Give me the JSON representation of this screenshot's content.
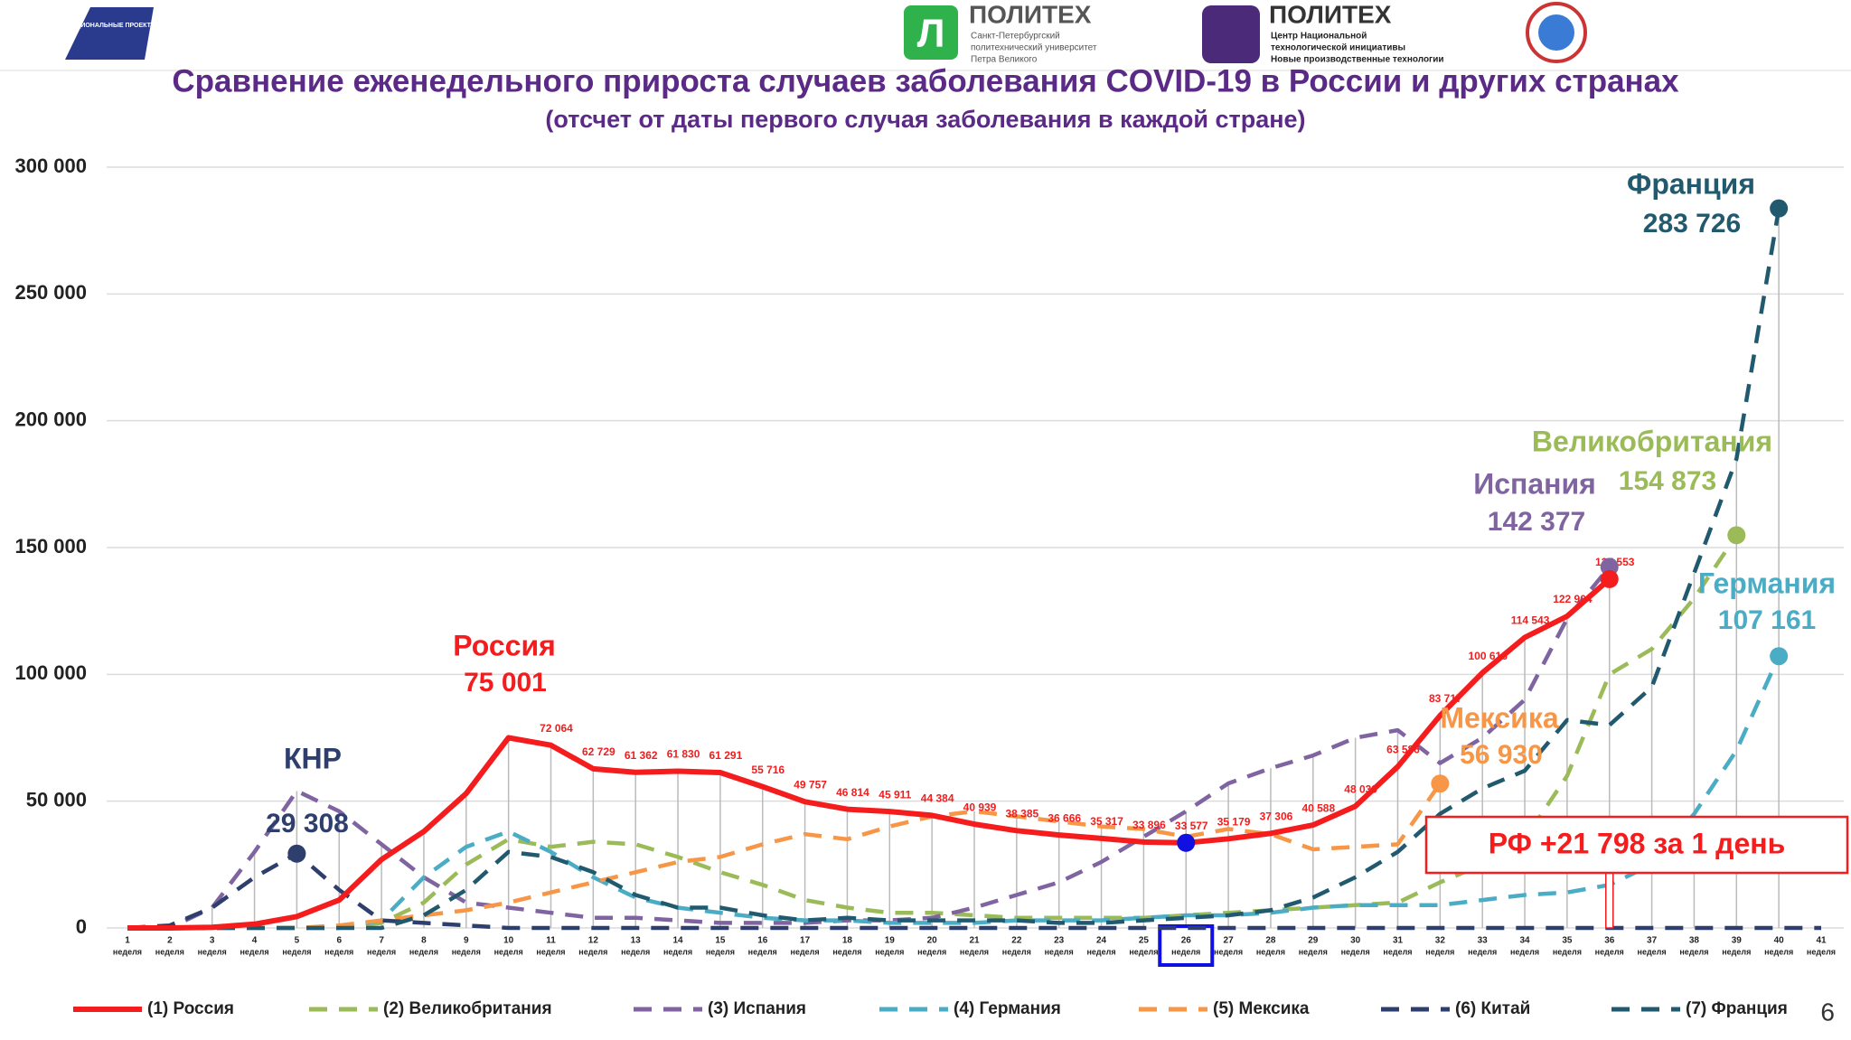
{
  "header": {
    "national_projects": "НАЦИОНАЛЬНЫЕ ПРОЕКТЫ РОССИИ",
    "logo1_title": "ПОЛИТЕХ",
    "logo1_text": [
      "Санкт-Петербургский",
      "политехнический университет",
      "Петра Великого"
    ],
    "logo2_title": "ПОЛИТЕХ",
    "logo2_text": [
      "Центр Национальной",
      "технологической инициативы",
      "Новые производственные технологии"
    ]
  },
  "page_number": "6",
  "chart_data": {
    "type": "line",
    "title": "Сравнение еженедельного прироста случаев заболевания COVID-19 в России и других странах",
    "subtitle": "(отсчет от даты первого случая заболевания в каждой стране)",
    "categories": [
      "1",
      "2",
      "3",
      "4",
      "5",
      "6",
      "7",
      "8",
      "9",
      "10",
      "11",
      "12",
      "13",
      "14",
      "15",
      "16",
      "17",
      "18",
      "19",
      "20",
      "21",
      "22",
      "23",
      "24",
      "25",
      "26",
      "27",
      "28",
      "29",
      "30",
      "31",
      "32",
      "33",
      "34",
      "35",
      "36",
      "37",
      "38",
      "39",
      "40",
      "41"
    ],
    "category_unit": "неделя",
    "ylim": [
      0,
      300000
    ],
    "yticks": [
      0,
      {
        "value": 50000,
        "label": "50 000"
      },
      {
        "value": 100000,
        "label": "100 000"
      },
      {
        "value": 150000,
        "label": "150 000"
      },
      {
        "value": 200000,
        "label": "200 000"
      },
      {
        "value": 250000,
        "label": "250 000"
      },
      {
        "value": 300000,
        "label": "300 000"
      }
    ],
    "grid": true,
    "legend": "bottom",
    "series": [
      {
        "name": "(1) Россия",
        "color": "#f41c1c",
        "dashed": false,
        "values": [
          0,
          0,
          300,
          1500,
          4500,
          11000,
          27000,
          38000,
          53000,
          75001,
          72064,
          62729,
          61362,
          61830,
          61291,
          55716,
          49757,
          46814,
          45911,
          44384,
          40939,
          38385,
          36666,
          35317,
          33896,
          33577,
          35179,
          37306,
          40588,
          48039,
          63586,
          83717,
          100616,
          114543,
          122904,
          137553,
          null,
          null,
          null,
          null,
          null
        ],
        "value_labels": [
          null,
          null,
          null,
          null,
          null,
          null,
          null,
          null,
          null,
          null,
          "72 064",
          "62 729",
          "61 362",
          "61 830",
          "61 291",
          "55 716",
          "49 757",
          "46 814",
          "45 911",
          "44 384",
          "40 939",
          "38 385",
          "36 666",
          "35 317",
          "33 896",
          "33 577",
          "35 179",
          "37 306",
          "40 588",
          "48 039",
          "63 586",
          "83 717",
          "100 616",
          "114 543",
          "122 904",
          "137 553",
          null,
          null,
          null,
          null,
          null
        ]
      },
      {
        "name": "(2) Великобритания",
        "color": "#9bbb59",
        "dashed": true,
        "values": [
          0,
          0,
          0,
          0,
          0,
          0,
          2000,
          10000,
          25000,
          35000,
          32000,
          34000,
          33000,
          28000,
          22000,
          17000,
          11000,
          8000,
          6000,
          6000,
          5000,
          4000,
          4000,
          4000,
          4000,
          5000,
          6000,
          7000,
          8000,
          9000,
          10000,
          18000,
          25000,
          35000,
          60000,
          100000,
          110000,
          130000,
          154873,
          null,
          null
        ]
      },
      {
        "name": "(3) Испания",
        "color": "#8064a2",
        "dashed": true,
        "values": [
          0,
          0,
          8000,
          30000,
          54000,
          46000,
          33000,
          20000,
          10000,
          8000,
          6000,
          4000,
          4000,
          3000,
          2000,
          2000,
          2000,
          3000,
          3000,
          4000,
          8000,
          13000,
          18000,
          26000,
          36000,
          46000,
          57000,
          63000,
          68000,
          75000,
          78000,
          65000,
          75000,
          90000,
          122000,
          142377,
          null,
          null,
          null,
          null,
          null
        ]
      },
      {
        "name": "(4) Германия",
        "color": "#4bacc6",
        "dashed": true,
        "values": [
          0,
          0,
          0,
          0,
          0,
          0,
          3000,
          20000,
          32000,
          38000,
          30000,
          20000,
          12000,
          8000,
          6000,
          4000,
          3000,
          3000,
          2000,
          2000,
          2000,
          3000,
          3000,
          3000,
          4000,
          5000,
          5000,
          6000,
          8000,
          9000,
          9000,
          9000,
          11000,
          13000,
          14000,
          17000,
          25000,
          45000,
          70000,
          107161,
          null
        ]
      },
      {
        "name": "(5) Мексика",
        "color": "#f79646",
        "dashed": true,
        "values": [
          0,
          0,
          0,
          0,
          0,
          1000,
          3000,
          5000,
          7000,
          10000,
          14000,
          18000,
          22000,
          26000,
          28000,
          33000,
          37000,
          35000,
          40000,
          44000,
          46000,
          44000,
          42000,
          40000,
          39000,
          36000,
          39000,
          37000,
          31000,
          32000,
          33000,
          56930,
          null,
          null,
          null,
          null,
          null,
          null,
          null,
          null,
          null
        ]
      },
      {
        "name": "(6) Китай",
        "color": "#2e3f6e",
        "dashed": true,
        "values": [
          0,
          1000,
          8000,
          20000,
          29308,
          15000,
          3000,
          2000,
          1000,
          0,
          0,
          0,
          0,
          0,
          0,
          0,
          0,
          0,
          0,
          0,
          0,
          0,
          0,
          0,
          0,
          0,
          0,
          0,
          0,
          0,
          0,
          0,
          0,
          0,
          0,
          0,
          0,
          0,
          0,
          0,
          0
        ]
      },
      {
        "name": "(7) Франция",
        "color": "#215a6e",
        "dashed": true,
        "values": [
          0,
          0,
          0,
          0,
          0,
          0,
          0,
          5000,
          15000,
          30000,
          28000,
          22000,
          13000,
          8000,
          8000,
          5000,
          3000,
          4000,
          3000,
          3000,
          3000,
          3000,
          2000,
          2000,
          3000,
          4000,
          5000,
          7000,
          12000,
          20000,
          30000,
          45000,
          55000,
          62000,
          82000,
          80000,
          95000,
          140000,
          185000,
          283726,
          null
        ]
      }
    ],
    "annotations": [
      {
        "text": "КНР",
        "value_label": "29 308"
      },
      {
        "text": "Россия",
        "value_label": "75 001"
      },
      {
        "text": "Франция",
        "value_label": "283 726"
      },
      {
        "text": "Великобритания",
        "value_label": "154 873"
      },
      {
        "text": "Испания",
        "value_label": "142 377"
      },
      {
        "text": "Германия",
        "value_label": "107 161"
      },
      {
        "text": "Мексика",
        "value_label": "56 930"
      }
    ],
    "callout": "РФ +21 798 за 1 день"
  }
}
